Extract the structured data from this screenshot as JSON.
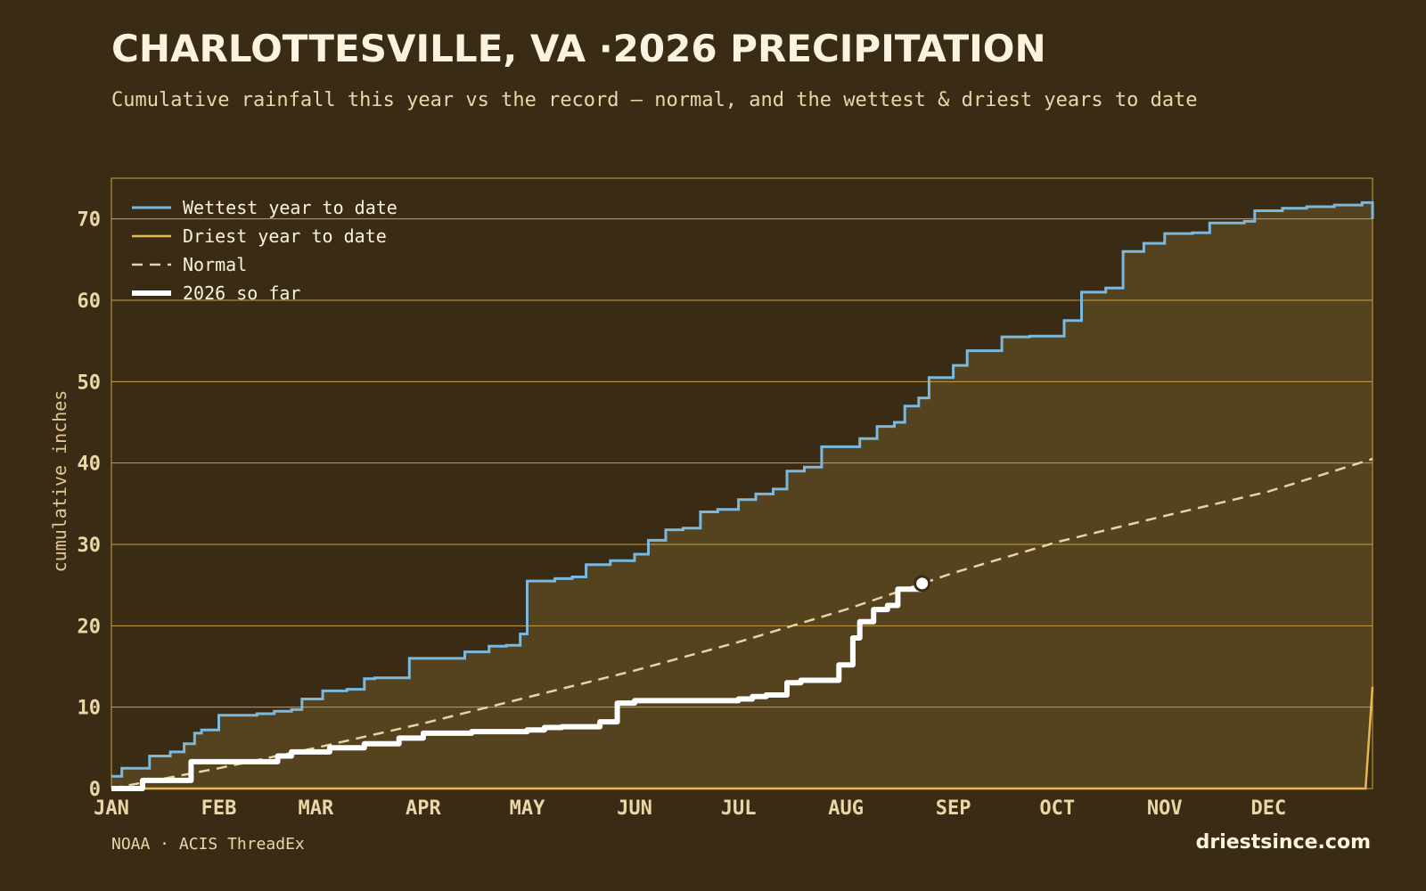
{
  "title": "CHARLOTTESVILLE, VA ·2026 PRECIPITATION",
  "subtitle": "Cumulative rainfall this year vs the record — normal, and the wettest & driest years to date",
  "source": "NOAA · ACIS ThreadEx",
  "site": "driestsince.com",
  "colors": {
    "wettest": "#7ab8de",
    "driest": "#e8b84a",
    "normal": "#e6d4a8",
    "current": "#ffffff",
    "grid": "#c9a040",
    "fill": "#55421f"
  },
  "chart_data": {
    "type": "line",
    "ylabel": "cumulative inches",
    "xlabel": "",
    "ylim": [
      0,
      75
    ],
    "xlim": [
      "2026-01-01",
      "2026-12-31"
    ],
    "y_ticks": [
      "0",
      "10",
      "20",
      "30",
      "40",
      "50",
      "60",
      "70"
    ],
    "x_ticks": [
      "JAN",
      "FEB",
      "MAR",
      "APR",
      "MAY",
      "JUN",
      "JUL",
      "AUG",
      "SEP",
      "OCT",
      "NOV",
      "DEC"
    ],
    "grid": "horizontal",
    "legend": "top-left",
    "series": [
      {
        "name": "Wettest year to date",
        "key": "wettest",
        "x": [
          "2026-01-01",
          "2026-01-04",
          "2026-01-08",
          "2026-01-12",
          "2026-01-14",
          "2026-01-18",
          "2026-01-22",
          "2026-01-25",
          "2026-01-27",
          "2026-02-01",
          "2026-02-06",
          "2026-02-12",
          "2026-02-17",
          "2026-02-22",
          "2026-02-25",
          "2026-03-03",
          "2026-03-10",
          "2026-03-15",
          "2026-03-18",
          "2026-03-28",
          "2026-04-05",
          "2026-04-13",
          "2026-04-20",
          "2026-04-25",
          "2026-04-29",
          "2026-05-01",
          "2026-05-09",
          "2026-05-14",
          "2026-05-18",
          "2026-05-25",
          "2026-06-01",
          "2026-06-05",
          "2026-06-10",
          "2026-06-15",
          "2026-06-20",
          "2026-06-25",
          "2026-07-01",
          "2026-07-06",
          "2026-07-11",
          "2026-07-15",
          "2026-07-20",
          "2026-07-25",
          "2026-08-05",
          "2026-08-10",
          "2026-08-15",
          "2026-08-18",
          "2026-08-22",
          "2026-08-25",
          "2026-09-01",
          "2026-09-05",
          "2026-09-15",
          "2026-09-23",
          "2026-09-27",
          "2026-10-03",
          "2026-10-08",
          "2026-10-15",
          "2026-10-20",
          "2026-10-26",
          "2026-11-01",
          "2026-11-09",
          "2026-11-14",
          "2026-11-24",
          "2026-11-27",
          "2026-12-05",
          "2026-12-12",
          "2026-12-20",
          "2026-12-28",
          "2026-12-31"
        ],
        "values": [
          1.5,
          2.5,
          2.5,
          4.0,
          4.0,
          4.5,
          5.5,
          6.8,
          7.2,
          9.0,
          9.0,
          9.2,
          9.5,
          9.7,
          11.0,
          12.0,
          12.2,
          13.5,
          13.6,
          16.0,
          16.0,
          16.8,
          17.5,
          17.6,
          19.0,
          25.5,
          25.8,
          26.0,
          27.5,
          28.0,
          28.8,
          30.5,
          31.8,
          32.0,
          34.0,
          34.3,
          35.5,
          36.2,
          36.8,
          39.0,
          39.5,
          42.0,
          43.0,
          44.5,
          45.0,
          47.0,
          48.0,
          50.5,
          52.0,
          53.8,
          55.5,
          55.6,
          55.6,
          57.5,
          61.0,
          61.5,
          66.0,
          67.0,
          68.2,
          68.3,
          69.5,
          69.7,
          71.0,
          71.3,
          71.5,
          71.7,
          72.0,
          70.0
        ]
      },
      {
        "name": "Driest year to date",
        "key": "driest",
        "x": [
          "2026-01-01",
          "2026-12-29",
          "2026-12-31"
        ],
        "values": [
          0.0,
          0.0,
          12.5
        ]
      },
      {
        "name": "Normal",
        "key": "normal",
        "x": [
          "2026-01-01",
          "2026-02-01",
          "2026-03-01",
          "2026-04-01",
          "2026-05-01",
          "2026-06-01",
          "2026-07-01",
          "2026-08-01",
          "2026-09-01",
          "2026-10-01",
          "2026-11-01",
          "2026-12-01",
          "2026-12-31"
        ],
        "values": [
          0.0,
          2.5,
          5.0,
          8.0,
          11.2,
          14.5,
          18.0,
          22.0,
          26.5,
          30.3,
          33.5,
          36.5,
          40.5
        ]
      },
      {
        "name": "2026 so far",
        "key": "current",
        "x": [
          "2026-01-01",
          "2026-01-09",
          "2026-01-10",
          "2026-01-23",
          "2026-01-24",
          "2026-02-13",
          "2026-02-18",
          "2026-02-22",
          "2026-03-05",
          "2026-03-12",
          "2026-03-15",
          "2026-03-25",
          "2026-04-01",
          "2026-04-15",
          "2026-05-01",
          "2026-05-06",
          "2026-05-11",
          "2026-05-22",
          "2026-05-27",
          "2026-06-01",
          "2026-06-20",
          "2026-07-01",
          "2026-07-05",
          "2026-07-09",
          "2026-07-15",
          "2026-07-19",
          "2026-07-30",
          "2026-08-01",
          "2026-08-03",
          "2026-08-05",
          "2026-08-09",
          "2026-08-13",
          "2026-08-16",
          "2026-08-23"
        ],
        "values": [
          0.0,
          0.0,
          1.0,
          1.0,
          3.3,
          3.3,
          4.0,
          4.5,
          5.0,
          5.0,
          5.5,
          6.2,
          6.8,
          7.0,
          7.2,
          7.5,
          7.6,
          8.2,
          10.5,
          10.8,
          10.8,
          11.0,
          11.3,
          11.5,
          13.0,
          13.3,
          15.2,
          15.2,
          18.5,
          20.5,
          22.0,
          22.5,
          24.5,
          25.2
        ]
      }
    ]
  }
}
